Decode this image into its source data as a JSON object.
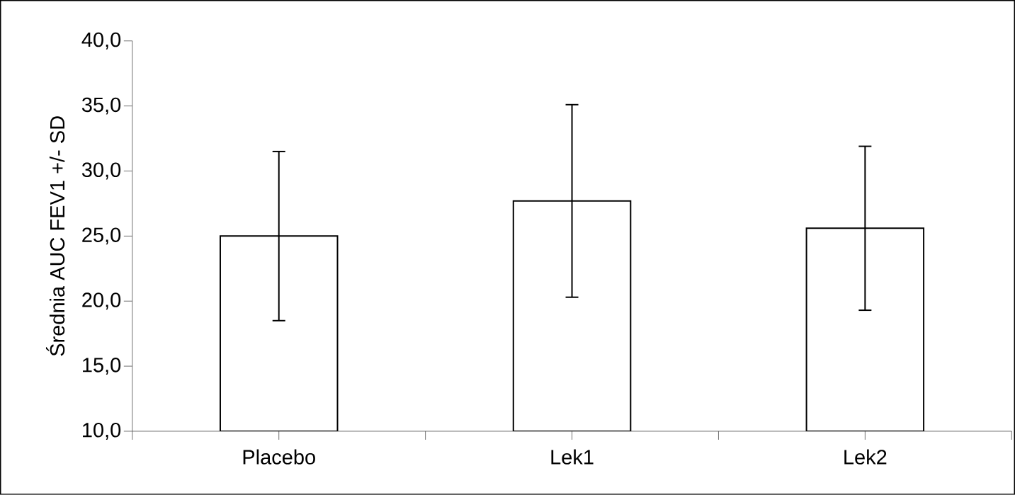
{
  "chart_data": {
    "type": "bar",
    "ylabel": "Średnia AUC FEV1 +/- SD",
    "categories": [
      "Placebo",
      "Lek1",
      "Lek2"
    ],
    "values": [
      25.0,
      27.7,
      25.6
    ],
    "errors": [
      6.5,
      7.4,
      6.3
    ],
    "color": "#ffffff",
    "ylim": [
      10,
      40
    ],
    "yticks": [
      {
        "value": 10,
        "label": "10,0"
      },
      {
        "value": 15,
        "label": "15,0"
      },
      {
        "value": 20,
        "label": "20,0"
      },
      {
        "value": 25,
        "label": "25,0"
      },
      {
        "value": 30,
        "label": "30,0"
      },
      {
        "value": 35,
        "label": "35,0"
      },
      {
        "value": 40,
        "label": "40,0"
      }
    ],
    "grid": false
  }
}
